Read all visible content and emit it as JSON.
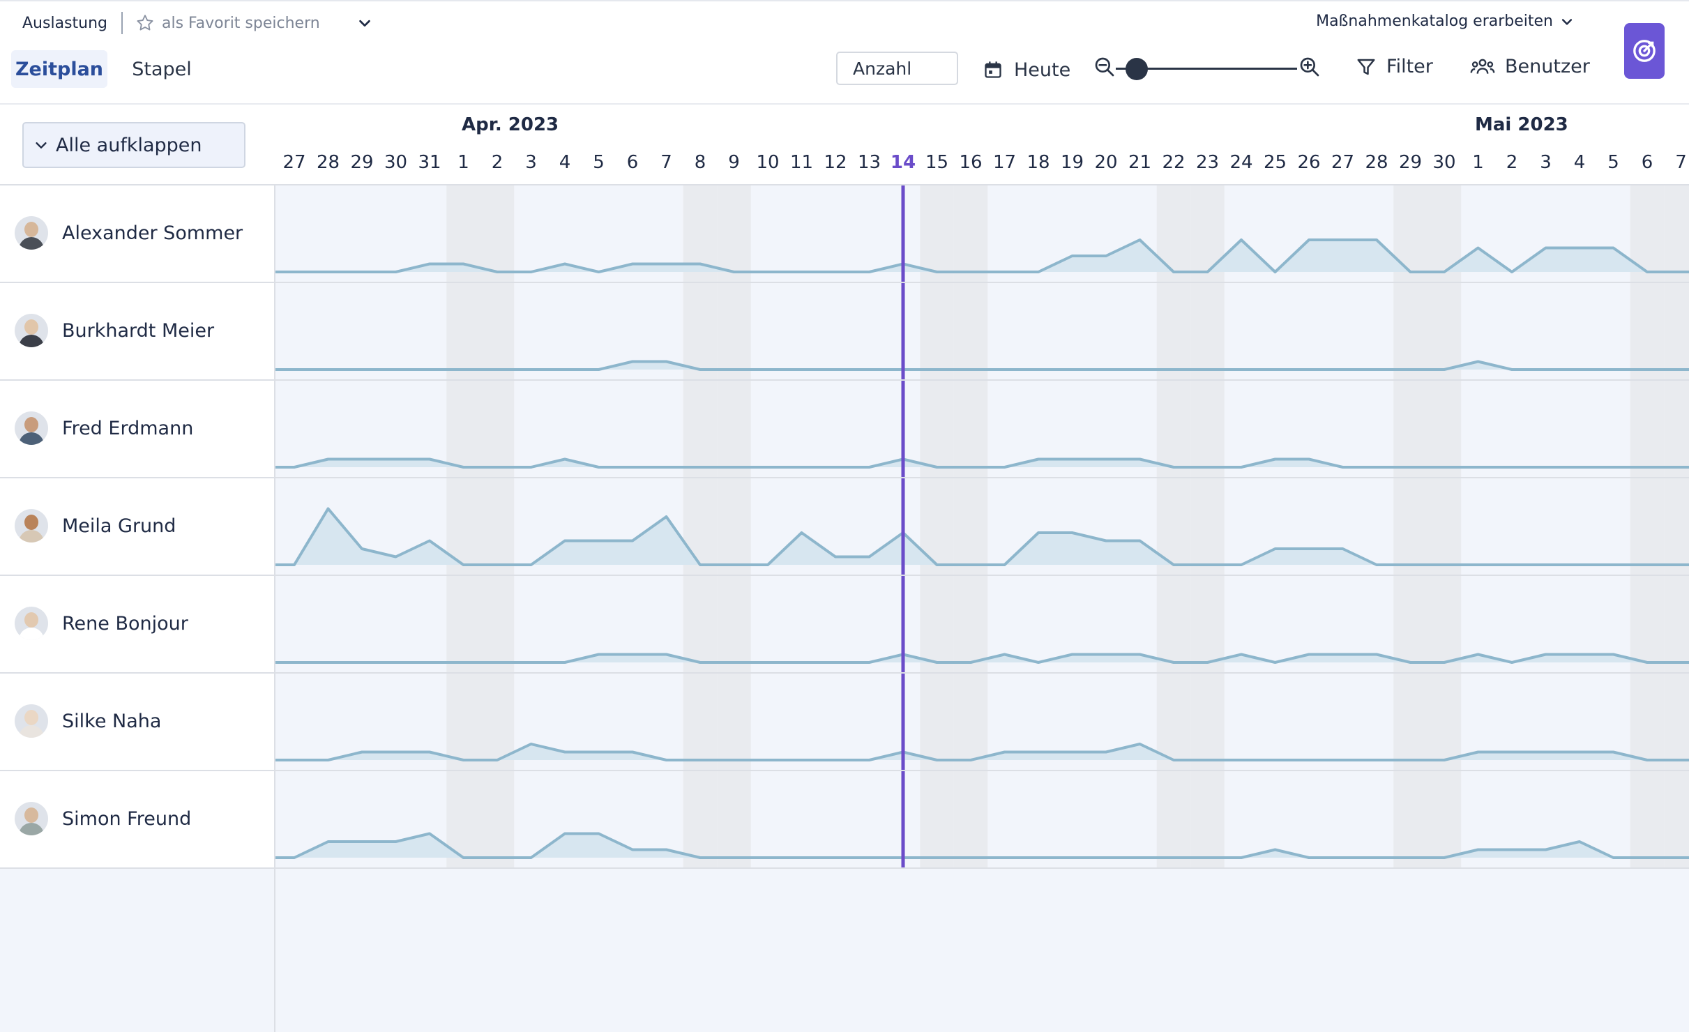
{
  "breadcrumb": {
    "view": "Auslastung",
    "favorite": "als Favorit speichern"
  },
  "project": {
    "label": "Maßnahmenkatalog erarbeiten"
  },
  "tabs": [
    {
      "label": "Zeitplan",
      "active": true
    },
    {
      "label": "Stapel",
      "active": false
    }
  ],
  "toolbar": {
    "mode": "Anzahl",
    "today": "Heute",
    "filter": "Filter",
    "users": "Benutzer",
    "zoom_level": 0.05
  },
  "expand_all": "Alle aufklappen",
  "months": [
    {
      "label": "Apr. 2023"
    },
    {
      "label": "Mai 2023"
    }
  ],
  "days": [
    "27",
    "28",
    "29",
    "30",
    "31",
    "1",
    "2",
    "3",
    "4",
    "5",
    "6",
    "7",
    "8",
    "9",
    "10",
    "11",
    "12",
    "13",
    "14",
    "15",
    "16",
    "17",
    "18",
    "19",
    "20",
    "21",
    "22",
    "23",
    "24",
    "25",
    "26",
    "27",
    "28",
    "29",
    "30",
    "1",
    "2",
    "3",
    "4",
    "5",
    "6",
    "7"
  ],
  "today_index": 18,
  "weekend_indices": [
    5,
    6,
    12,
    13,
    19,
    20,
    26,
    27,
    33,
    34,
    40,
    41
  ],
  "colors": {
    "accent": "#6a4cc9",
    "line": "#8db6cc",
    "fill": "#d7e6f0",
    "weekend": "#e9ebef",
    "workday": "#f2f5fb"
  },
  "people": [
    {
      "name": "Alexander Sommer",
      "avatar": "avatar-icon",
      "load": [
        0,
        0,
        0,
        0,
        1,
        1,
        0,
        0,
        1,
        0,
        1,
        1,
        1,
        0,
        0,
        0,
        0,
        0,
        1,
        0,
        0,
        0,
        0,
        2,
        2,
        4,
        0,
        0,
        4,
        0,
        4,
        4,
        4,
        0,
        0,
        3,
        0,
        3,
        3,
        3,
        0,
        0
      ]
    },
    {
      "name": "Burkhardt Meier",
      "avatar": "avatar-icon",
      "load": [
        0,
        0,
        0,
        0,
        0,
        0,
        0,
        0,
        0,
        0,
        1,
        1,
        0,
        0,
        0,
        0,
        0,
        0,
        0,
        0,
        0,
        0,
        0,
        0,
        0,
        0,
        0,
        0,
        0,
        0,
        0,
        0,
        0,
        0,
        0,
        1,
        0,
        0,
        0,
        0,
        0,
        0
      ]
    },
    {
      "name": "Fred Erdmann",
      "avatar": "avatar-icon",
      "load": [
        0,
        1,
        1,
        1,
        1,
        0,
        0,
        0,
        1,
        0,
        0,
        0,
        0,
        0,
        0,
        0,
        0,
        0,
        1,
        0,
        0,
        0,
        1,
        1,
        1,
        1,
        0,
        0,
        0,
        1,
        1,
        0,
        0,
        0,
        0,
        0,
        0,
        0,
        0,
        0,
        0,
        0
      ]
    },
    {
      "name": "Meila Grund",
      "avatar": "avatar-icon",
      "load": [
        0,
        7,
        2,
        1,
        3,
        0,
        0,
        0,
        3,
        3,
        3,
        6,
        0,
        0,
        0,
        4,
        1,
        1,
        4,
        0,
        0,
        0,
        4,
        4,
        3,
        3,
        0,
        0,
        0,
        2,
        2,
        2,
        0,
        0,
        0,
        0,
        0,
        0,
        0,
        0,
        0,
        0
      ]
    },
    {
      "name": "Rene Bonjour",
      "avatar": "avatar-icon",
      "load": [
        0,
        0,
        0,
        0,
        0,
        0,
        0,
        0,
        0,
        1,
        1,
        1,
        0,
        0,
        0,
        0,
        0,
        0,
        1,
        0,
        0,
        1,
        0,
        1,
        1,
        1,
        0,
        0,
        1,
        0,
        1,
        1,
        1,
        0,
        0,
        1,
        0,
        1,
        1,
        1,
        0,
        0
      ]
    },
    {
      "name": "Silke Naha",
      "avatar": "avatar-icon",
      "load": [
        0,
        0,
        1,
        1,
        1,
        0,
        0,
        2,
        1,
        1,
        1,
        0,
        0,
        0,
        0,
        0,
        0,
        0,
        1,
        0,
        0,
        1,
        1,
        1,
        1,
        2,
        0,
        0,
        0,
        0,
        0,
        0,
        0,
        0,
        0,
        1,
        1,
        1,
        1,
        1,
        0,
        0
      ]
    },
    {
      "name": "Simon Freund",
      "avatar": "avatar-icon",
      "load": [
        0,
        2,
        2,
        2,
        3,
        0,
        0,
        0,
        3,
        3,
        1,
        1,
        0,
        0,
        0,
        0,
        0,
        0,
        0,
        0,
        0,
        0,
        0,
        0,
        0,
        0,
        0,
        0,
        0,
        1,
        0,
        0,
        0,
        0,
        0,
        1,
        1,
        1,
        2,
        0,
        0,
        0
      ]
    }
  ]
}
